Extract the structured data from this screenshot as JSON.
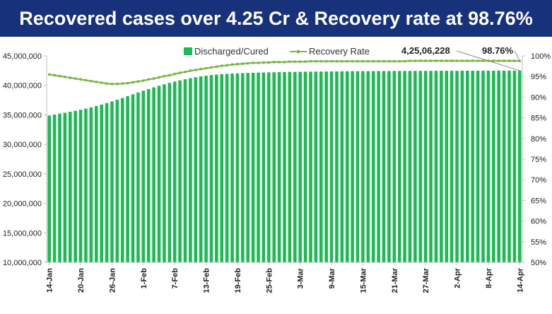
{
  "banner": {
    "title": "Recovered cases over 4.25 Cr & Recovery rate at 98.76%",
    "background": "#17327a",
    "text_color": "#ffffff"
  },
  "chart_data": {
    "type": "bar",
    "title": "",
    "xlabel": "",
    "ylabel": "",
    "categories": [
      "14-Jan",
      "15-Jan",
      "16-Jan",
      "17-Jan",
      "18-Jan",
      "19-Jan",
      "20-Jan",
      "21-Jan",
      "22-Jan",
      "23-Jan",
      "24-Jan",
      "25-Jan",
      "26-Jan",
      "27-Jan",
      "28-Jan",
      "29-Jan",
      "30-Jan",
      "31-Jan",
      "1-Feb",
      "2-Feb",
      "3-Feb",
      "4-Feb",
      "5-Feb",
      "6-Feb",
      "7-Feb",
      "8-Feb",
      "9-Feb",
      "10-Feb",
      "11-Feb",
      "12-Feb",
      "13-Feb",
      "14-Feb",
      "15-Feb",
      "16-Feb",
      "17-Feb",
      "18-Feb",
      "19-Feb",
      "20-Feb",
      "21-Feb",
      "22-Feb",
      "23-Feb",
      "24-Feb",
      "25-Feb",
      "26-Feb",
      "27-Feb",
      "28-Feb",
      "1-Mar",
      "2-Mar",
      "3-Mar",
      "4-Mar",
      "5-Mar",
      "6-Mar",
      "7-Mar",
      "8-Mar",
      "9-Mar",
      "10-Mar",
      "11-Mar",
      "12-Mar",
      "13-Mar",
      "14-Mar",
      "15-Mar",
      "16-Mar",
      "17-Mar",
      "18-Mar",
      "19-Mar",
      "20-Mar",
      "21-Mar",
      "22-Mar",
      "23-Mar",
      "24-Mar",
      "25-Mar",
      "26-Mar",
      "27-Mar",
      "28-Mar",
      "29-Mar",
      "30-Mar",
      "31-Mar",
      "1-Apr",
      "2-Apr",
      "3-Apr",
      "4-Apr",
      "5-Apr",
      "6-Apr",
      "7-Apr",
      "8-Apr",
      "9-Apr",
      "10-Apr",
      "11-Apr",
      "12-Apr",
      "13-Apr",
      "14-Apr"
    ],
    "x_tick_labels": [
      "14-Jan",
      "20-Jan",
      "26-Jan",
      "1-Feb",
      "7-Feb",
      "13-Feb",
      "19-Feb",
      "25-Feb",
      "3-Mar",
      "9-Mar",
      "15-Mar",
      "21-Mar",
      "27-Mar",
      "2-Apr",
      "8-Apr",
      "14-Apr"
    ],
    "series": [
      {
        "name": "Discharged/Cured",
        "axis": "left",
        "kind": "bar",
        "color": "#1db954",
        "values": [
          34900000,
          35050000,
          35200000,
          35360000,
          35520000,
          35690000,
          35870000,
          36060000,
          36270000,
          36500000,
          36740000,
          37000000,
          37270000,
          37560000,
          37860000,
          38170000,
          38480000,
          38790000,
          39090000,
          39380000,
          39660000,
          39930000,
          40180000,
          40420000,
          40640000,
          40850000,
          41040000,
          41220000,
          41380000,
          41520000,
          41640000,
          41740000,
          41820000,
          41890000,
          41950000,
          42000000,
          42040000,
          42080000,
          42110000,
          42140000,
          42160000,
          42180000,
          42200000,
          42220000,
          42240000,
          42260000,
          42280000,
          42290000,
          42300000,
          42310000,
          42320000,
          42330000,
          42340000,
          42350000,
          42360000,
          42370000,
          42380000,
          42390000,
          42400000,
          42400000,
          42410000,
          42410000,
          42420000,
          42420000,
          42430000,
          42430000,
          42440000,
          42440000,
          42440000,
          42450000,
          42450000,
          42450000,
          42460000,
          42460000,
          42460000,
          42470000,
          42470000,
          42470000,
          42470000,
          42480000,
          42480000,
          42480000,
          42480000,
          42490000,
          42490000,
          42490000,
          42500000,
          42500000,
          42500000,
          42500000,
          42506228
        ]
      },
      {
        "name": "Recovery Rate",
        "axis": "right",
        "kind": "line",
        "color": "#7ab648",
        "values": [
          95.5,
          95.3,
          95.1,
          94.9,
          94.7,
          94.5,
          94.3,
          94.1,
          93.9,
          93.7,
          93.5,
          93.3,
          93.2,
          93.2,
          93.3,
          93.4,
          93.6,
          93.8,
          94.0,
          94.3,
          94.5,
          94.8,
          95.1,
          95.3,
          95.6,
          95.9,
          96.1,
          96.4,
          96.6,
          96.8,
          97.0,
          97.2,
          97.4,
          97.6,
          97.7,
          97.9,
          98.0,
          98.1,
          98.2,
          98.3,
          98.3,
          98.4,
          98.4,
          98.5,
          98.5,
          98.5,
          98.6,
          98.6,
          98.6,
          98.6,
          98.7,
          98.7,
          98.7,
          98.7,
          98.7,
          98.7,
          98.7,
          98.7,
          98.7,
          98.7,
          98.7,
          98.7,
          98.7,
          98.7,
          98.7,
          98.7,
          98.7,
          98.7,
          98.7,
          98.8,
          98.8,
          98.8,
          98.8,
          98.8,
          98.8,
          98.8,
          98.8,
          98.8,
          98.8,
          98.8,
          98.8,
          98.8,
          98.8,
          98.8,
          98.8,
          98.8,
          98.8,
          98.8,
          98.8,
          98.8,
          98.76
        ]
      }
    ],
    "y_left": {
      "lim": [
        10000000,
        45000000
      ],
      "ticks": [
        10000000,
        15000000,
        20000000,
        25000000,
        30000000,
        35000000,
        40000000,
        45000000
      ],
      "tick_labels": [
        "10,000,000",
        "15,000,000",
        "20,000,000",
        "25,000,000",
        "30,000,000",
        "35,000,000",
        "40,000,000",
        "45,000,000"
      ]
    },
    "y_right": {
      "lim": [
        50,
        100
      ],
      "ticks": [
        50,
        55,
        60,
        65,
        70,
        75,
        80,
        85,
        90,
        95,
        100
      ],
      "tick_labels": [
        "50%",
        "55%",
        "60%",
        "65%",
        "70%",
        "75%",
        "80%",
        "85%",
        "90%",
        "95%",
        "100%"
      ]
    },
    "legend": {
      "placement": "top-center"
    },
    "grid": false,
    "annotations": [
      {
        "text": "4,25,06,228",
        "target_series": "Discharged/Cured",
        "target_category": "14-Apr"
      },
      {
        "text": "98.76%",
        "target_series": "Recovery Rate",
        "target_category": "14-Apr"
      }
    ]
  }
}
